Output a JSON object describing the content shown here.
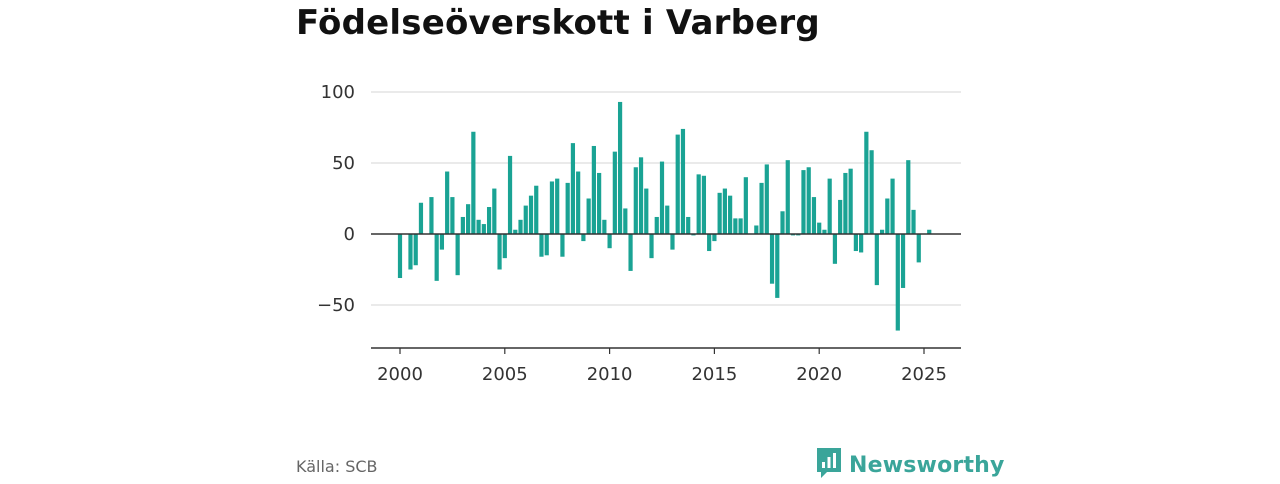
{
  "title": "Födelseöverskott i Varberg",
  "source": "Källa: SCB",
  "brand": {
    "name": "Newsworthy",
    "icon": "newsworthy-logo-icon"
  },
  "colors": {
    "bar": "#1aa394",
    "grid": "#d6d6d6",
    "zero_line": "#333333",
    "brand": "#3aa59a"
  },
  "chart_data": {
    "type": "bar",
    "title": "Födelseöverskott i Varberg",
    "xlabel": "",
    "ylabel": "",
    "x_unit": "quarter",
    "xlim": [
      1999.6,
      2027.3
    ],
    "ylim": [
      -80,
      100
    ],
    "yticks": [
      100,
      50,
      0,
      -50
    ],
    "ytick_labels": [
      "100",
      "50",
      "0",
      "−50"
    ],
    "xticks": [
      2000,
      2005,
      2010,
      2015,
      2020,
      2025
    ],
    "xtick_labels": [
      "2000",
      "2005",
      "2010",
      "2015",
      "2020",
      "2025"
    ],
    "grid": "horizontal",
    "x": [
      2000.0,
      2000.25,
      2000.5,
      2000.75,
      2001.0,
      2001.25,
      2001.5,
      2001.75,
      2002.0,
      2002.25,
      2002.5,
      2002.75,
      2003.0,
      2003.25,
      2003.5,
      2003.75,
      2004.0,
      2004.25,
      2004.5,
      2004.75,
      2005.0,
      2005.25,
      2005.5,
      2005.75,
      2006.0,
      2006.25,
      2006.5,
      2006.75,
      2007.0,
      2007.25,
      2007.5,
      2007.75,
      2008.0,
      2008.25,
      2008.5,
      2008.75,
      2009.0,
      2009.25,
      2009.5,
      2009.75,
      2010.0,
      2010.25,
      2010.5,
      2010.75,
      2011.0,
      2011.25,
      2011.5,
      2011.75,
      2012.0,
      2012.25,
      2012.5,
      2012.75,
      2013.0,
      2013.25,
      2013.5,
      2013.75,
      2014.0,
      2014.25,
      2014.5,
      2014.75,
      2015.0,
      2015.25,
      2015.5,
      2015.75,
      2016.0,
      2016.25,
      2016.5,
      2016.75,
      2017.0,
      2017.25,
      2017.5,
      2017.75,
      2018.0,
      2018.25,
      2018.5,
      2018.75,
      2019.0,
      2019.25,
      2019.5,
      2019.75,
      2020.0,
      2020.25,
      2020.5,
      2020.75,
      2021.0,
      2021.25,
      2021.5,
      2021.75,
      2022.0,
      2022.25,
      2022.5,
      2022.75,
      2023.0,
      2023.25,
      2023.5,
      2023.75,
      2024.0,
      2024.25,
      2024.5,
      2024.75,
      2025.0,
      2025.25
    ],
    "values": [
      -31,
      0,
      -25,
      -22,
      22,
      0,
      26,
      -33,
      -11,
      44,
      26,
      -29,
      12,
      21,
      72,
      10,
      7,
      19,
      32,
      -25,
      -17,
      55,
      3,
      10,
      20,
      27,
      34,
      -16,
      -15,
      37,
      39,
      -16,
      36,
      64,
      44,
      -5,
      25,
      62,
      43,
      10,
      -10,
      58,
      93,
      18,
      -26,
      47,
      54,
      32,
      -17,
      12,
      51,
      20,
      -11,
      70,
      74,
      12,
      -1,
      42,
      41,
      -12,
      -5,
      29,
      32,
      27,
      11,
      11,
      40,
      0,
      6,
      36,
      49,
      -35,
      -45,
      16,
      52,
      -1,
      -1,
      45,
      47,
      26,
      8,
      3,
      39,
      -21,
      24,
      43,
      46,
      -12,
      -13,
      72,
      59,
      -36,
      3,
      25,
      39,
      -68,
      -38,
      52,
      17,
      -20,
      0,
      3
    ]
  }
}
